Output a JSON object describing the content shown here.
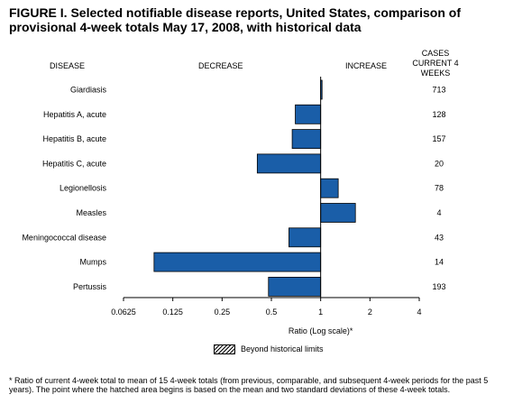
{
  "title": "FIGURE I. Selected notifiable disease reports, United States, comparison of provisional 4-week totals May 17, 2008, with historical data",
  "headers": {
    "disease": "DISEASE",
    "decrease": "DECREASE",
    "increase": "INCREASE",
    "cases": "CASES CURRENT 4 WEEKS"
  },
  "legend": {
    "label": "Beyond historical limits"
  },
  "footnote": "* Ratio of current 4-week total to mean of 15 4-week totals (from previous, comparable, and subsequent 4-week periods for the past 5 years). The point where the hatched area begins is based on the mean and two standard deviations of these 4-week totals.",
  "chart_data": {
    "type": "bar",
    "orientation": "horizontal",
    "categories": [
      "Giardiasis",
      "Hepatitis A, acute",
      "Hepatitis B, acute",
      "Hepatitis C, acute",
      "Legionellosis",
      "Measles",
      "Meningococcal disease",
      "Mumps",
      "Pertussis"
    ],
    "values": [
      1.02,
      0.7,
      0.67,
      0.41,
      1.28,
      1.63,
      0.64,
      0.096,
      0.48
    ],
    "cases": [
      "713",
      "128",
      "157",
      "20",
      "78",
      "4",
      "43",
      "14",
      "193"
    ],
    "xlabel": "Ratio (Log scale)*",
    "xscale": "log2",
    "xlim": [
      0.0625,
      4
    ],
    "xticks": [
      "0.0625",
      "0.125",
      "0.25",
      "0.5",
      "1",
      "2",
      "4"
    ],
    "baseline": 1,
    "bar_color": "#1a5ea8",
    "grid": false
  }
}
